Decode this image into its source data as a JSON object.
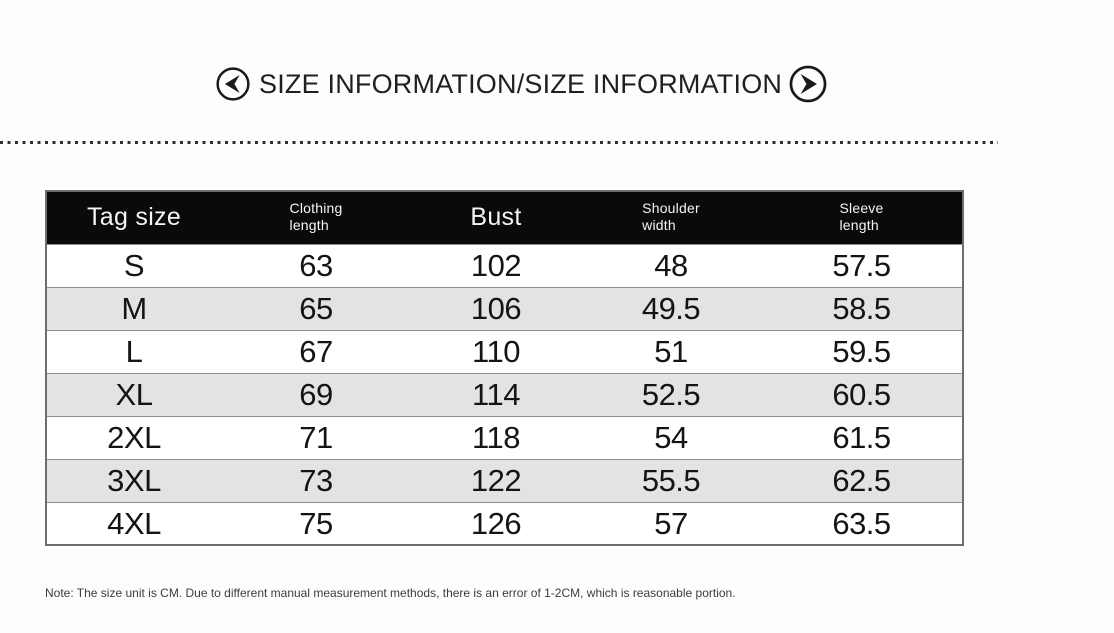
{
  "header": {
    "title": "SIZE INFORMATION/SIZE INFORMATION",
    "icons": {
      "prev": "circle-arrow-left",
      "next": "circle-arrow-right"
    }
  },
  "table": {
    "columns": [
      {
        "label": "Tag size"
      },
      {
        "line1": "Clothing",
        "line2": "length"
      },
      {
        "label": "Bust"
      },
      {
        "line1": "Shoulder",
        "line2": "width"
      },
      {
        "line1": "Sleeve",
        "line2": "length"
      }
    ],
    "rows": [
      [
        "S",
        "63",
        "102",
        "48",
        "57.5"
      ],
      [
        "M",
        "65",
        "106",
        "49.5",
        "58.5"
      ],
      [
        "L",
        "67",
        "110",
        "51",
        "59.5"
      ],
      [
        "XL",
        "69",
        "114",
        "52.5",
        "60.5"
      ],
      [
        "2XL",
        "71",
        "118",
        "54",
        "61.5"
      ],
      [
        "3XL",
        "73",
        "122",
        "55.5",
        "62.5"
      ],
      [
        "4XL",
        "75",
        "126",
        "57",
        "63.5"
      ]
    ]
  },
  "note": {
    "text": "Note: The size unit is CM. Due to different manual measurement methods, there is an error of 1-2CM, which is reasonable portion."
  },
  "colors": {
    "header_bg": "#0a0a0a",
    "header_text": "#f5f5f5",
    "alt_row_bg": "#e3e3e3",
    "table_border": "#6e6e6e",
    "row_border": "#8f8f8f",
    "divider": "#2e2e2e",
    "text": "#141414"
  }
}
